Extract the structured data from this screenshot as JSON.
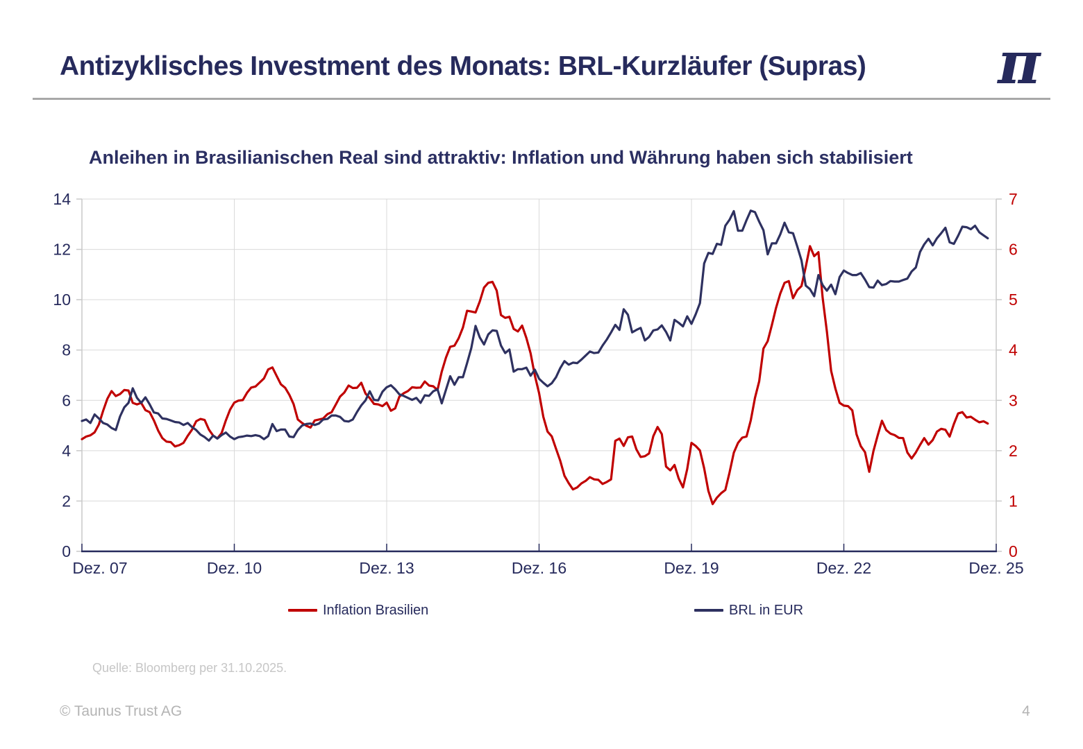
{
  "slide": {
    "title": "Antizyklisches Investment des Monats: BRL-Kurzläufer (Supras)",
    "logo_glyph": "π",
    "source": "Quelle: Bloomberg per 31.10.2025.",
    "footer_left": "© Taunus Trust AG",
    "page_number": "4",
    "colors": {
      "accent_navy": "#262a5c",
      "accent_red": "#c00000",
      "rule_gray": "#a8a8a8",
      "muted_gray": "#b4b4b4"
    }
  },
  "chart": {
    "headline": "Anleihen in Brasilianischen Real sind attraktiv: Inflation und Währung haben sich stabilisiert"
  },
  "chart_data": {
    "type": "line",
    "title": "Anleihen in Brasilianischen Real sind attraktiv: Inflation und Währung haben sich stabilisiert",
    "frequency": "monthly",
    "x_start": "Dez. 07",
    "x_end": "Dez. 25",
    "x_total_months": 216,
    "x_tick_labels": [
      "Dez. 07",
      "Dez. 10",
      "Dez. 13",
      "Dez. 16",
      "Dez. 19",
      "Dez. 22",
      "Dez. 25"
    ],
    "left_axis": {
      "min": 0,
      "max": 14,
      "step": 2,
      "tick_labels": [
        "0",
        "2",
        "4",
        "6",
        "8",
        "10",
        "12",
        "14"
      ],
      "label_color": "#262a5c"
    },
    "right_axis": {
      "min": 0,
      "max": 7,
      "step": 1,
      "tick_labels": [
        "0",
        "1",
        "2",
        "3",
        "4",
        "5",
        "6",
        "7"
      ],
      "label_color": "#c00000"
    },
    "grid": {
      "color": "#d9d9d9",
      "axis_gray": "#c9c9c9",
      "bottom_axis_color": "#262a5c"
    },
    "legend_position": "bottom",
    "series": [
      {
        "name": "Inflation Brasilien",
        "axis": "left",
        "color": "#c00000",
        "values": [
          4.46,
          4.56,
          4.61,
          4.73,
          5.04,
          5.58,
          6.06,
          6.37,
          6.17,
          6.25,
          6.41,
          6.39,
          5.9,
          5.84,
          5.9,
          5.61,
          5.53,
          5.2,
          4.8,
          4.5,
          4.36,
          4.34,
          4.17,
          4.22,
          4.31,
          4.59,
          4.83,
          5.17,
          5.26,
          5.22,
          4.84,
          4.6,
          4.49,
          4.7,
          5.2,
          5.63,
          5.91,
          5.99,
          6.01,
          6.3,
          6.51,
          6.55,
          6.71,
          6.87,
          7.23,
          7.31,
          6.97,
          6.64,
          6.5,
          6.22,
          5.85,
          5.24,
          5.1,
          4.99,
          4.92,
          5.2,
          5.24,
          5.28,
          5.45,
          5.53,
          5.84,
          6.15,
          6.31,
          6.59,
          6.49,
          6.5,
          6.7,
          6.27,
          6.09,
          5.86,
          5.84,
          5.77,
          5.91,
          5.59,
          5.68,
          6.15,
          6.28,
          6.37,
          6.52,
          6.5,
          6.51,
          6.75,
          6.59,
          6.56,
          6.41,
          7.14,
          7.7,
          8.13,
          8.17,
          8.47,
          8.89,
          9.56,
          9.53,
          9.49,
          9.93,
          10.48,
          10.67,
          10.71,
          10.36,
          9.39,
          9.28,
          9.32,
          8.84,
          8.74,
          8.97,
          8.48,
          7.87,
          6.99,
          6.29,
          5.35,
          4.76,
          4.57,
          4.08,
          3.6,
          3.0,
          2.71,
          2.46,
          2.54,
          2.7,
          2.8,
          2.95,
          2.86,
          2.84,
          2.68,
          2.76,
          2.86,
          4.39,
          4.48,
          4.19,
          4.53,
          4.56,
          4.05,
          3.75,
          3.78,
          3.89,
          4.58,
          4.94,
          4.66,
          3.37,
          3.22,
          3.43,
          2.89,
          2.54,
          3.27,
          4.31,
          4.19,
          4.01,
          3.3,
          2.4,
          1.88,
          2.13,
          2.31,
          2.44,
          3.14,
          3.92,
          4.31,
          4.52,
          4.56,
          5.2,
          6.1,
          6.76,
          8.06,
          8.35,
          8.99,
          9.68,
          10.25,
          10.67,
          10.74,
          10.06,
          10.38,
          10.54,
          11.3,
          12.13,
          11.73,
          11.89,
          10.07,
          8.73,
          7.17,
          6.47,
          5.9,
          5.79,
          5.77,
          5.6,
          4.65,
          4.18,
          3.94,
          3.16,
          3.99,
          4.61,
          5.19,
          4.82,
          4.68,
          4.62,
          4.51,
          4.5,
          3.93,
          3.69,
          3.93,
          4.23,
          4.5,
          4.24,
          4.42,
          4.76,
          4.87,
          4.83,
          4.56,
          5.06,
          5.48,
          5.53,
          5.32,
          5.35,
          5.23,
          5.13,
          5.17,
          5.08
        ]
      },
      {
        "name": "BRL in EUR",
        "axis": "right",
        "color": "#2e3160",
        "values": [
          2.59,
          2.62,
          2.55,
          2.72,
          2.64,
          2.55,
          2.52,
          2.45,
          2.41,
          2.68,
          2.86,
          2.95,
          3.24,
          3.05,
          2.95,
          3.06,
          2.92,
          2.76,
          2.74,
          2.64,
          2.63,
          2.6,
          2.57,
          2.56,
          2.51,
          2.55,
          2.47,
          2.41,
          2.32,
          2.27,
          2.2,
          2.3,
          2.24,
          2.31,
          2.36,
          2.28,
          2.23,
          2.27,
          2.28,
          2.3,
          2.29,
          2.31,
          2.29,
          2.23,
          2.29,
          2.53,
          2.39,
          2.42,
          2.42,
          2.28,
          2.27,
          2.41,
          2.5,
          2.53,
          2.54,
          2.51,
          2.54,
          2.62,
          2.63,
          2.7,
          2.7,
          2.67,
          2.59,
          2.58,
          2.62,
          2.77,
          2.9,
          3.0,
          3.18,
          3.01,
          3.0,
          3.17,
          3.26,
          3.3,
          3.22,
          3.12,
          3.09,
          3.05,
          3.01,
          3.05,
          2.95,
          3.1,
          3.09,
          3.18,
          3.22,
          2.94,
          3.21,
          3.48,
          3.31,
          3.46,
          3.46,
          3.74,
          4.04,
          4.48,
          4.25,
          4.11,
          4.31,
          4.39,
          4.38,
          4.09,
          3.94,
          4.01,
          3.57,
          3.62,
          3.62,
          3.65,
          3.49,
          3.61,
          3.43,
          3.35,
          3.28,
          3.34,
          3.46,
          3.64,
          3.78,
          3.71,
          3.75,
          3.74,
          3.81,
          3.89,
          3.97,
          3.94,
          3.95,
          4.09,
          4.21,
          4.35,
          4.5,
          4.4,
          4.81,
          4.7,
          4.35,
          4.4,
          4.44,
          4.19,
          4.26,
          4.39,
          4.41,
          4.49,
          4.36,
          4.19,
          4.6,
          4.54,
          4.47,
          4.67,
          4.52,
          4.71,
          4.93,
          5.72,
          5.93,
          5.91,
          6.11,
          6.09,
          6.47,
          6.59,
          6.76,
          6.37,
          6.37,
          6.58,
          6.77,
          6.74,
          6.55,
          6.38,
          5.9,
          6.12,
          6.12,
          6.3,
          6.53,
          6.34,
          6.32,
          6.06,
          5.78,
          5.28,
          5.21,
          5.07,
          5.49,
          5.29,
          5.18,
          5.3,
          5.11,
          5.45,
          5.58,
          5.53,
          5.49,
          5.49,
          5.53,
          5.4,
          5.25,
          5.24,
          5.38,
          5.29,
          5.31,
          5.37,
          5.36,
          5.36,
          5.39,
          5.42,
          5.56,
          5.64,
          5.95,
          6.1,
          6.21,
          6.08,
          6.22,
          6.32,
          6.43,
          6.14,
          6.11,
          6.27,
          6.45,
          6.44,
          6.4,
          6.47,
          6.34,
          6.28,
          6.22
        ]
      }
    ]
  }
}
